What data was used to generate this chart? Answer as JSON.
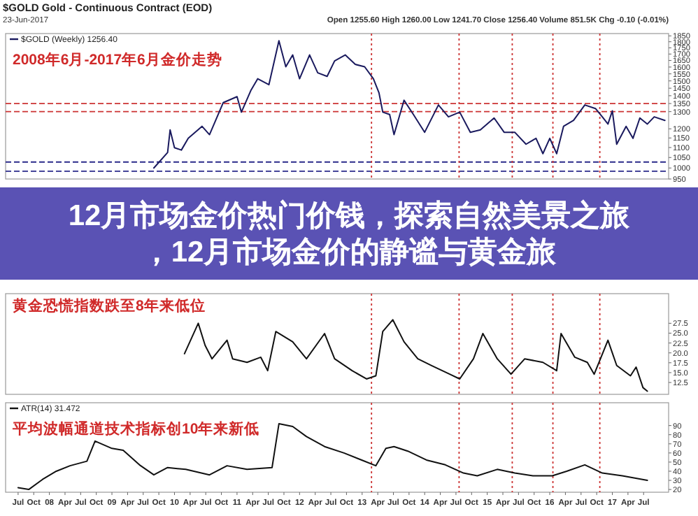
{
  "chart_data": [
    {
      "type": "line",
      "title": "12月市场金价热门价钱，探索自然美景之旅，12月市场金价的静谧与黄金旅",
      "subtitle": "$GOLD Gold - Continuous Contract (EOD)",
      "annotations": [
        "23-Jun-2017",
        "Open 1255.60 High 1260.00 Low 1241.70 Close 1256.40 Volume 851.5K Chg -0.10 (-0.01%)",
        "2008年6月-2017年6月金价走势"
      ],
      "log": "y",
      "legend": "top left",
      "tick_labels": "y",
      "xlim": [
        2007.3,
        2017.9
      ],
      "ylim": [
        950,
        1870
      ],
      "yticks": [
        950,
        1000,
        1050,
        1100,
        1150,
        1200,
        1300,
        1350,
        1400,
        1450,
        1500,
        1550,
        1600,
        1650,
        1700,
        1750,
        1800,
        1850
      ],
      "ref_lines": [
        {
          "axis": "y",
          "value": 1350,
          "color": "#cc3333",
          "line_style": "dashed"
        },
        {
          "axis": "y",
          "value": 1300,
          "color": "#cc3333",
          "line_style": "dashed"
        },
        {
          "axis": "y",
          "value": 1028,
          "color": "#2a2a8a",
          "line_style": "dashed"
        },
        {
          "axis": "y",
          "value": 985,
          "color": "#2a2a8a",
          "line_style": "dashed"
        },
        {
          "axis": "x",
          "value": 2013.15,
          "color": "#cc3333",
          "line_style": "dotted"
        },
        {
          "axis": "x",
          "value": 2014.55,
          "color": "#cc3333",
          "line_style": "dotted"
        },
        {
          "axis": "x",
          "value": 2015.4,
          "color": "#cc3333",
          "line_style": "dotted"
        },
        {
          "axis": "x",
          "value": 2016.05,
          "color": "#cc3333",
          "line_style": "dotted"
        },
        {
          "axis": "x",
          "value": 2016.8,
          "color": "#cc3333",
          "line_style": "dotted"
        }
      ],
      "series": [
        {
          "name": "$GOLD (Weekly) 1256.40",
          "color": "#1a1a5e",
          "x": [
            2009.67,
            2009.89,
            2009.93,
            2010.0,
            2010.11,
            2010.22,
            2010.44,
            2010.56,
            2010.78,
            2011.0,
            2011.07,
            2011.22,
            2011.33,
            2011.51,
            2011.67,
            2011.78,
            2011.89,
            2012.0,
            2012.16,
            2012.29,
            2012.44,
            2012.56,
            2012.73,
            2012.89,
            2013.04,
            2013.18,
            2013.27,
            2013.33,
            2013.44,
            2013.51,
            2013.67,
            2013.82,
            2014.0,
            2014.22,
            2014.38,
            2014.56,
            2014.73,
            2014.89,
            2015.11,
            2015.27,
            2015.44,
            2015.62,
            2015.78,
            2015.89,
            2016.0,
            2016.11,
            2016.22,
            2016.38,
            2016.56,
            2016.73,
            2016.84,
            2016.93,
            2017.0,
            2017.07,
            2017.22,
            2017.33,
            2017.44,
            2017.56,
            2017.67,
            2017.84
          ],
          "values": [
            1000,
            1075,
            1194,
            1099,
            1087,
            1148,
            1214,
            1168,
            1356,
            1394,
            1297,
            1434,
            1515,
            1474,
            1809,
            1602,
            1693,
            1515,
            1693,
            1558,
            1532,
            1646,
            1693,
            1620,
            1602,
            1515,
            1418,
            1297,
            1283,
            1168,
            1371,
            1283,
            1181,
            1341,
            1269,
            1297,
            1181,
            1194,
            1262,
            1181,
            1181,
            1117,
            1148,
            1069,
            1148,
            1069,
            1214,
            1248,
            1341,
            1319,
            1269,
            1227,
            1305,
            1117,
            1214,
            1148,
            1262,
            1227,
            1269,
            1248
          ]
        }
      ]
    },
    {
      "type": "line",
      "annotations": [
        "黄金恐慌指数跌至8年来低位"
      ],
      "tick_labels": "y",
      "xlim": [
        2007.3,
        2017.9
      ],
      "ylim": [
        9.5,
        35
      ],
      "yticks": [
        {
          "value": 12.5,
          "label": "12.5"
        },
        {
          "value": 15,
          "label": "15.0"
        },
        {
          "value": 17.5,
          "label": "17.5"
        },
        {
          "value": 20,
          "label": "20.0"
        },
        {
          "value": 22.5,
          "label": "22.5"
        },
        {
          "value": 25,
          "label": "25.0"
        },
        {
          "value": 27.5,
          "label": "27.5"
        }
      ],
      "ref_lines": [
        {
          "axis": "x",
          "value": 2013.15,
          "color": "#cc3333",
          "line_style": "dotted"
        },
        {
          "axis": "x",
          "value": 2014.55,
          "color": "#cc3333",
          "line_style": "dotted"
        },
        {
          "axis": "x",
          "value": 2015.4,
          "color": "#cc3333",
          "line_style": "dotted"
        },
        {
          "axis": "x",
          "value": 2016.05,
          "color": "#cc3333",
          "line_style": "dotted"
        },
        {
          "axis": "x",
          "value": 2016.8,
          "color": "#cc3333",
          "line_style": "dotted"
        }
      ],
      "series": [
        {
          "color": "#111111",
          "x": [
            2010.16,
            2010.38,
            2010.49,
            2010.6,
            2010.84,
            2010.93,
            2011.16,
            2011.38,
            2011.49,
            2011.62,
            2011.89,
            2012.11,
            2012.4,
            2012.56,
            2012.84,
            2013.07,
            2013.22,
            2013.33,
            2013.49,
            2013.67,
            2013.89,
            2014.11,
            2014.4,
            2014.56,
            2014.78,
            2014.93,
            2015.16,
            2015.38,
            2015.6,
            2015.89,
            2016.11,
            2016.18,
            2016.4,
            2016.6,
            2016.71,
            2016.93,
            2017.07,
            2017.29,
            2017.38,
            2017.49,
            2017.56
          ],
          "values": [
            19.8,
            27.5,
            21.9,
            18.5,
            23.2,
            18.5,
            17.6,
            18.9,
            15.5,
            25.4,
            22.8,
            18.5,
            24.9,
            18.5,
            15.5,
            13.4,
            14.2,
            25.4,
            28.4,
            22.8,
            18.5,
            16.8,
            14.6,
            13.4,
            18.5,
            24.9,
            18.5,
            14.6,
            18.5,
            17.6,
            15.5,
            24.9,
            18.9,
            17.6,
            14.6,
            23.2,
            16.8,
            14.2,
            16.4,
            11.2,
            10.3
          ]
        }
      ]
    },
    {
      "type": "line",
      "annotations": [
        "平均波幅通道技术指标创10年来新低"
      ],
      "legend": "top left",
      "xlim": [
        2007.3,
        2017.9
      ],
      "ylim": [
        17,
        115
      ],
      "yticks": [
        20,
        30,
        40,
        50,
        60,
        70,
        80,
        90
      ],
      "xticks": [
        {
          "value": 2007.5,
          "label": "Jul"
        },
        {
          "value": 2007.75,
          "label": "Oct"
        },
        {
          "value": 2008,
          "label": "08"
        },
        {
          "value": 2008.25,
          "label": "Apr"
        },
        {
          "value": 2008.5,
          "label": "Jul"
        },
        {
          "value": 2008.75,
          "label": "Oct"
        },
        {
          "value": 2009,
          "label": "09"
        },
        {
          "value": 2009.25,
          "label": "Apr"
        },
        {
          "value": 2009.5,
          "label": "Jul"
        },
        {
          "value": 2009.75,
          "label": "Oct"
        },
        {
          "value": 2010,
          "label": "10"
        },
        {
          "value": 2010.25,
          "label": "Apr"
        },
        {
          "value": 2010.5,
          "label": "Jul"
        },
        {
          "value": 2010.75,
          "label": "Oct"
        },
        {
          "value": 2011,
          "label": "11"
        },
        {
          "value": 2011.25,
          "label": "Apr"
        },
        {
          "value": 2011.5,
          "label": "Jul"
        },
        {
          "value": 2011.75,
          "label": "Oct"
        },
        {
          "value": 2012,
          "label": "12"
        },
        {
          "value": 2012.25,
          "label": "Apr"
        },
        {
          "value": 2012.5,
          "label": "Jul"
        },
        {
          "value": 2012.75,
          "label": "Oct"
        },
        {
          "value": 2013,
          "label": "13"
        },
        {
          "value": 2013.25,
          "label": "Apr"
        },
        {
          "value": 2013.5,
          "label": "Jul"
        },
        {
          "value": 2013.75,
          "label": "Oct"
        },
        {
          "value": 2014,
          "label": "14"
        },
        {
          "value": 2014.25,
          "label": "Apr"
        },
        {
          "value": 2014.5,
          "label": "Jul"
        },
        {
          "value": 2014.75,
          "label": "Oct"
        },
        {
          "value": 2015,
          "label": "15"
        },
        {
          "value": 2015.25,
          "label": "Apr"
        },
        {
          "value": 2015.5,
          "label": "Jul"
        },
        {
          "value": 2015.75,
          "label": "Oct"
        },
        {
          "value": 2016,
          "label": "16"
        },
        {
          "value": 2016.25,
          "label": "Apr"
        },
        {
          "value": 2016.5,
          "label": "Jul"
        },
        {
          "value": 2016.75,
          "label": "Oct"
        },
        {
          "value": 2017,
          "label": "17"
        },
        {
          "value": 2017.25,
          "label": "Apr"
        },
        {
          "value": 2017.5,
          "label": "Jul"
        }
      ],
      "ref_lines": [
        {
          "axis": "x",
          "value": 2013.15,
          "color": "#cc3333",
          "line_style": "dotted"
        },
        {
          "axis": "x",
          "value": 2014.55,
          "color": "#cc3333",
          "line_style": "dotted"
        },
        {
          "axis": "x",
          "value": 2015.4,
          "color": "#cc3333",
          "line_style": "dotted"
        },
        {
          "axis": "x",
          "value": 2016.05,
          "color": "#cc3333",
          "line_style": "dotted"
        },
        {
          "axis": "x",
          "value": 2016.8,
          "color": "#cc3333",
          "line_style": "dotted"
        }
      ],
      "series": [
        {
          "name": "ATR(14) 31.472",
          "color": "#111111",
          "x": [
            2007.5,
            2007.67,
            2007.89,
            2008.11,
            2008.33,
            2008.6,
            2008.73,
            2009.0,
            2009.18,
            2009.44,
            2009.67,
            2009.89,
            2010.18,
            2010.56,
            2010.84,
            2011.16,
            2011.56,
            2011.67,
            2011.89,
            2012.11,
            2012.4,
            2012.71,
            2013.0,
            2013.22,
            2013.38,
            2013.51,
            2013.73,
            2014.04,
            2014.33,
            2014.62,
            2014.84,
            2015.16,
            2015.44,
            2015.73,
            2016.04,
            2016.27,
            2016.56,
            2016.84,
            2017.16,
            2017.56
          ],
          "values": [
            22,
            20,
            31,
            40,
            46,
            51,
            73,
            65,
            63,
            47,
            36,
            44,
            42,
            36,
            46,
            42,
            44,
            92,
            89,
            78,
            67,
            60,
            52,
            46,
            65,
            67,
            62,
            52,
            47,
            38,
            35,
            42,
            38,
            35,
            35,
            40,
            47,
            38,
            35,
            30
          ]
        }
      ]
    }
  ]
}
